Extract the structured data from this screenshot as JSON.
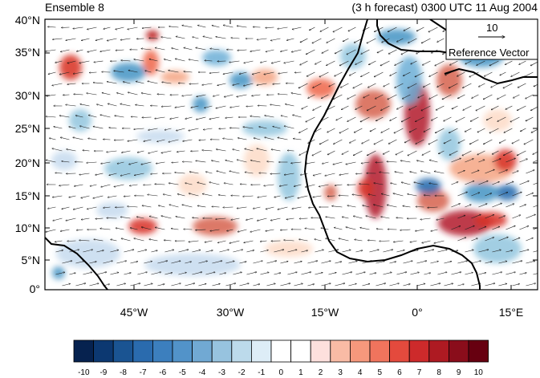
{
  "title": {
    "left": "Ensemble 8",
    "right": "(3 h forecast) 0300 UTC 11 Aug 2004"
  },
  "map": {
    "lat_labels": [
      "40°N",
      "35°N",
      "30°N",
      "25°N",
      "20°N",
      "15°N",
      "10°N",
      "5°N",
      "0°"
    ],
    "lon_labels": [
      "45°W",
      "30°W",
      "15°W",
      "0°",
      "15°E"
    ],
    "lon_range": [
      -58,
      19
    ],
    "lat_range": [
      0,
      40
    ],
    "reference_vector": {
      "magnitude": "10",
      "label": "Reference Vector"
    }
  },
  "colorbar": {
    "labels": [
      "-10",
      "-9",
      "-8",
      "-7",
      "-6",
      "-5",
      "-4",
      "-3",
      "-2",
      "-1",
      "0",
      "1",
      "2",
      "3",
      "4",
      "5",
      "6",
      "7",
      "8",
      "9",
      "10"
    ],
    "colors": [
      "#06224f",
      "#0c3871",
      "#1a5492",
      "#2a6bae",
      "#3c7fbe",
      "#5293c9",
      "#71a9d3",
      "#97c3df",
      "#bcdaeb",
      "#ddedf7",
      "#ffffff",
      "#ffffff",
      "#fde0dd",
      "#f9bba5",
      "#f6987c",
      "#f0745d",
      "#e44a3d",
      "#cd2a2b",
      "#ae1a22",
      "#8a0d1b",
      "#670010"
    ]
  }
}
